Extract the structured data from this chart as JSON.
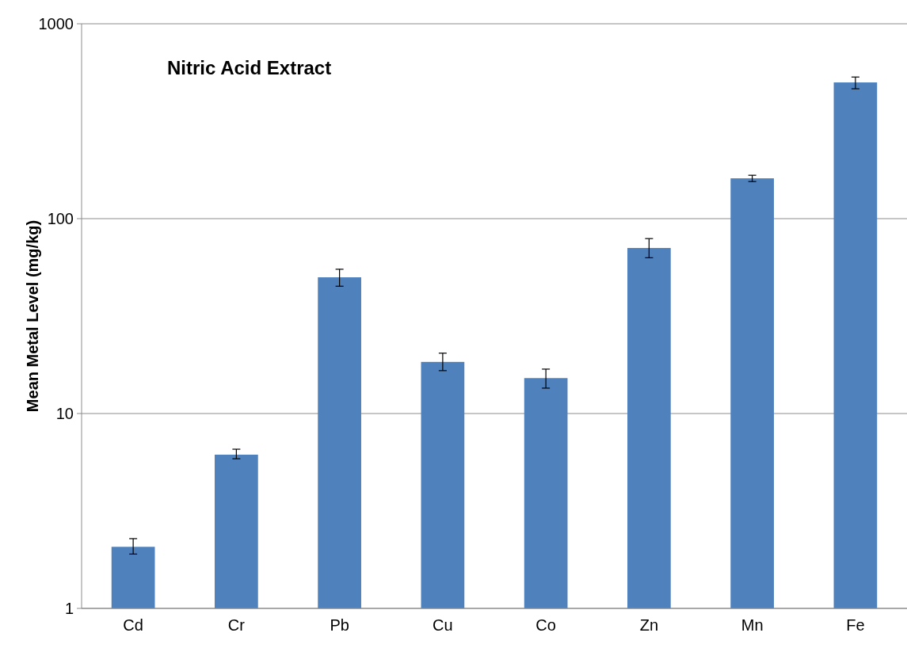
{
  "chart_data": {
    "type": "bar",
    "title": "Nitric Acid Extract",
    "ylabel": "Mean Metal Level (mg/kg)",
    "categories": [
      "Cd",
      "Cr",
      "Pb",
      "Cu",
      "Co",
      "Zn",
      "Mn",
      "Fe"
    ],
    "values": [
      2.07,
      6.15,
      50,
      18.4,
      15.2,
      70.7,
      161,
      500
    ],
    "errors": [
      [
        1.9,
        2.28
      ],
      [
        5.86,
        6.56
      ],
      [
        45,
        55
      ],
      [
        16.6,
        20.4
      ],
      [
        13.5,
        16.9
      ],
      [
        63,
        79
      ],
      [
        155,
        167
      ],
      [
        464,
        533
      ]
    ],
    "color": "#4f81bd",
    "log": true,
    "ylim": [
      1,
      1000
    ],
    "yticks": [
      1,
      10,
      100,
      1000
    ],
    "grid": "y"
  }
}
